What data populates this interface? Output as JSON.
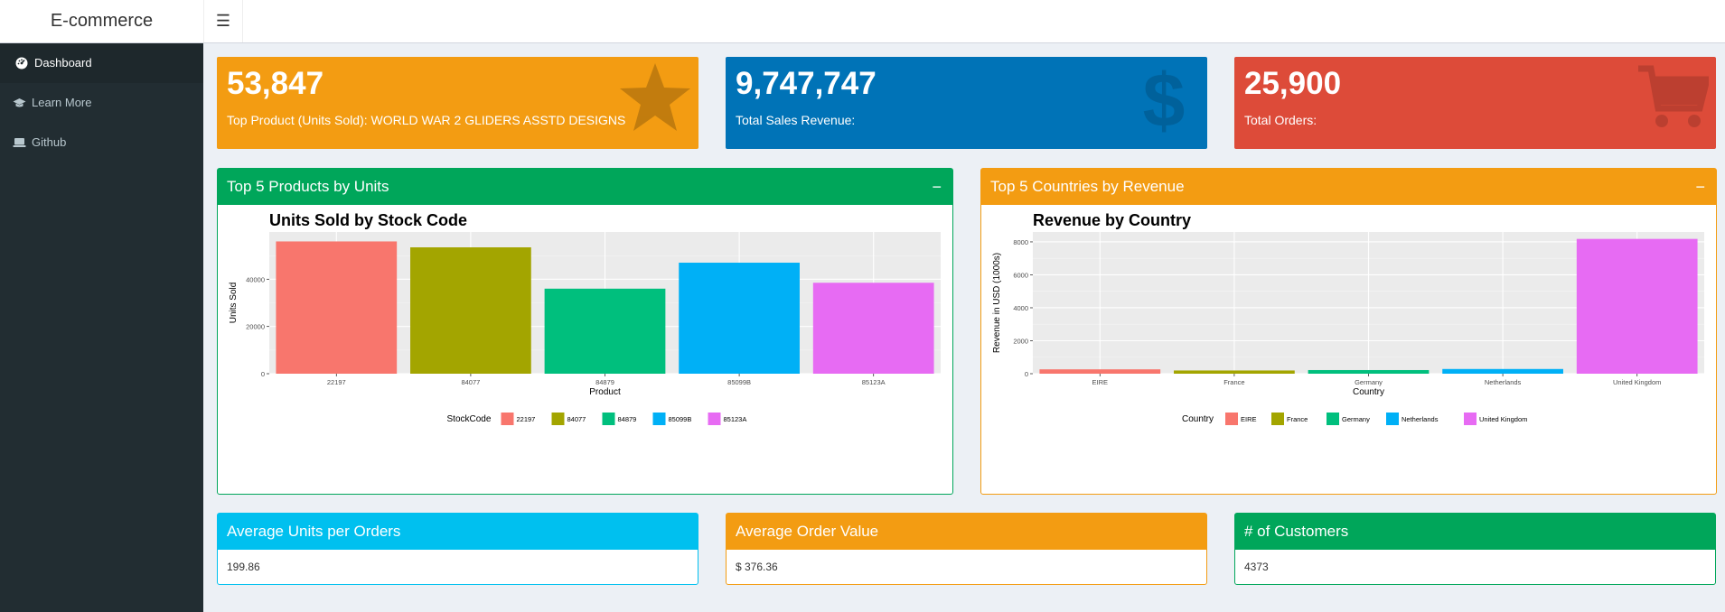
{
  "header": {
    "logo": "E-commerce",
    "toggle_icon": "hamburger-icon"
  },
  "sidebar": {
    "items": [
      {
        "label": "Dashboard",
        "icon": "dashboard-icon"
      },
      {
        "label": "Learn More",
        "icon": "graduation-cap-icon"
      },
      {
        "label": "Github",
        "icon": "laptop-icon"
      }
    ]
  },
  "value_boxes": [
    {
      "value": "53,847",
      "subtitle": "Top Product (Units Sold): WORLD WAR 2 GLIDERS ASSTD DESIGNS",
      "color": "#f39c12",
      "icon": "star-icon"
    },
    {
      "value": "9,747,747",
      "subtitle": "Total Sales Revenue:",
      "color": "#0073b7",
      "icon": "dollar-icon"
    },
    {
      "value": "25,900",
      "subtitle": "Total Orders:",
      "color": "#dd4b39",
      "icon": "shopping-cart-icon"
    }
  ],
  "products_box": {
    "title": "Top 5 Products by Units",
    "color": "#00a65a",
    "collapse_label": "−"
  },
  "countries_box": {
    "title": "Top 5 Countries by Revenue",
    "color": "#f39c12",
    "collapse_label": "−"
  },
  "info_boxes": [
    {
      "title": "Average Units per Orders",
      "value": "199.86",
      "color": "#00c0ef"
    },
    {
      "title": "Average Order Value",
      "value": "$ 376.36",
      "color": "#f39c12"
    },
    {
      "title": "# of Customers",
      "value": "4373",
      "color": "#00a65a"
    }
  ],
  "chart_data": [
    {
      "type": "bar",
      "title": "Units Sold by Stock Code",
      "xlabel": "Product",
      "ylabel": "Units Sold",
      "categories": [
        "22197",
        "84077",
        "84879",
        "85099B",
        "85123A"
      ],
      "values": [
        56000,
        53500,
        36000,
        47000,
        38500
      ],
      "colors": [
        "#f8766d",
        "#a3a500",
        "#00bf7d",
        "#00b0f6",
        "#e76bf3"
      ],
      "yticks": [
        0,
        20000,
        40000
      ],
      "ylim": [
        0,
        60000
      ],
      "legend_title": "StockCode",
      "legend_position": "bottom",
      "grid": true
    },
    {
      "type": "bar",
      "title": "Revenue by Country",
      "xlabel": "Country",
      "ylabel": "Revenue in USD (1000s)",
      "categories": [
        "EIRE",
        "France",
        "Germany",
        "Netherlands",
        "United Kingdom"
      ],
      "values": [
        265,
        195,
        220,
        285,
        8180
      ],
      "colors": [
        "#f8766d",
        "#a3a500",
        "#00bf7d",
        "#00b0f6",
        "#e76bf3"
      ],
      "yticks": [
        0,
        2000,
        4000,
        6000,
        8000
      ],
      "ylim": [
        0,
        8600
      ],
      "legend_title": "Country",
      "legend_position": "bottom",
      "grid": true
    }
  ]
}
